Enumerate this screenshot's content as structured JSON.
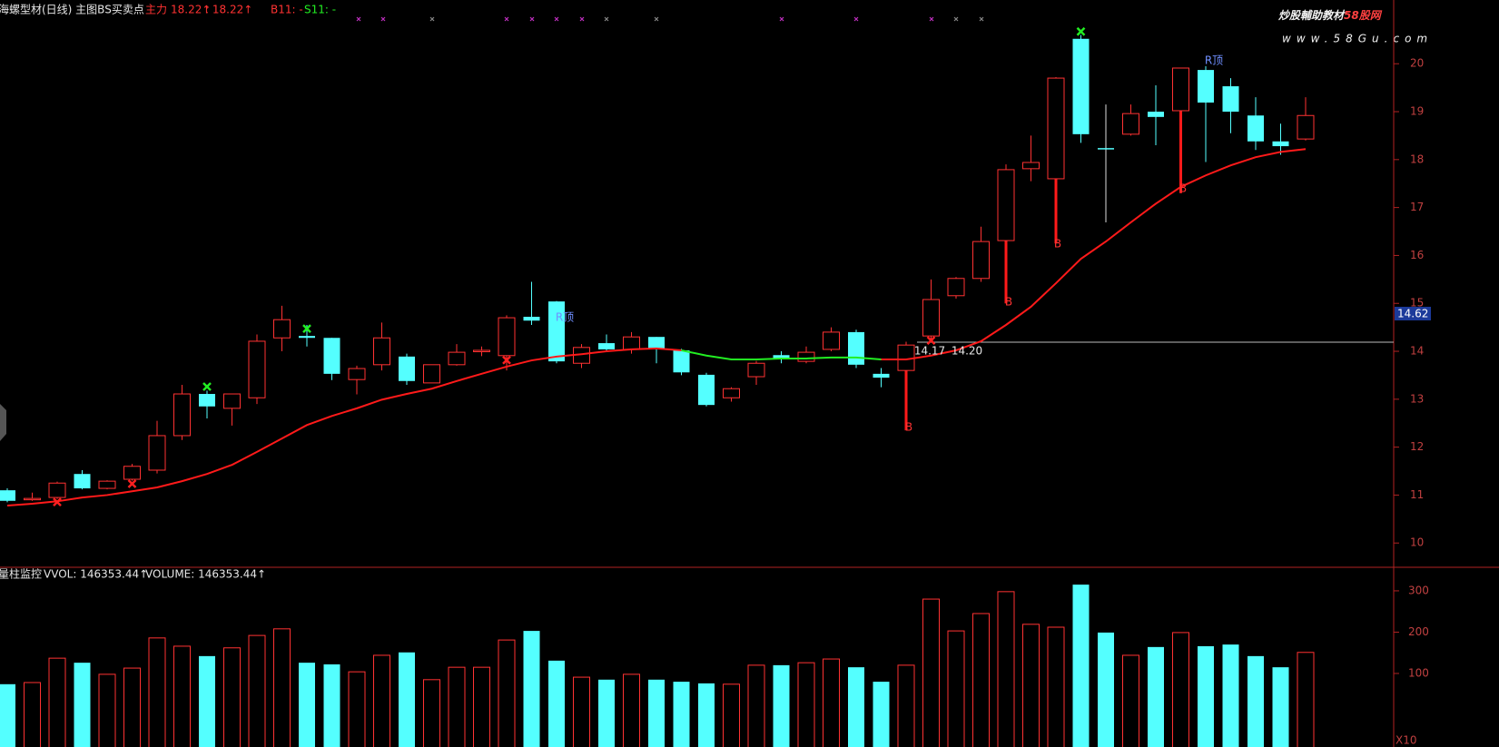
{
  "chart_data": [
    {
      "type": "candlestick",
      "title": "海螺型材(日线) 主图BS买卖点",
      "legend_texts": [
        "主力",
        "18.22↑",
        ": 18.22↑",
        "B11: -",
        "S11: -"
      ],
      "watermark": [
        "炒股輔助教材",
        "58股网",
        "www.58Gu.com"
      ],
      "annotations": [
        "R顶",
        "R顶",
        "B",
        "B",
        "B",
        "B",
        "14.17",
        "14.20"
      ],
      "price_marker": "14.62",
      "up_color": "#ff3232",
      "down_color": "#54ffff",
      "open": [
        11.1,
        10.91,
        10.95,
        11.44,
        11.14,
        11.33,
        11.52,
        12.24,
        13.11,
        12.81,
        13.03,
        14.28,
        14.32,
        14.28,
        13.41,
        13.72,
        13.89,
        13.34,
        13.72,
        14.0,
        13.91,
        14.72,
        15.04,
        13.75,
        14.17,
        14.04,
        14.3,
        14.02,
        13.51,
        13.03,
        13.47,
        13.92,
        13.79,
        14.04,
        14.4,
        13.53,
        13.6,
        14.32,
        15.16,
        15.52,
        16.31,
        17.81,
        17.6,
        20.52,
        18.24,
        18.53,
        19.0,
        19.02,
        19.87,
        19.53,
        18.92,
        18.38,
        18.43
      ],
      "high": [
        11.14,
        11.05,
        11.28,
        11.52,
        11.31,
        11.65,
        12.55,
        13.3,
        13.18,
        13.11,
        14.35,
        14.95,
        14.55,
        14.28,
        13.7,
        14.6,
        13.95,
        13.72,
        14.15,
        14.1,
        14.75,
        15.45,
        15.05,
        14.15,
        14.35,
        14.4,
        14.3,
        14.05,
        13.55,
        13.25,
        13.8,
        14.0,
        14.1,
        14.5,
        14.45,
        13.65,
        14.2,
        15.5,
        15.55,
        16.6,
        17.9,
        18.5,
        19.72,
        20.6,
        19.15,
        19.15,
        19.55,
        19.92,
        19.95,
        19.7,
        19.3,
        18.75,
        19.3
      ],
      "low": [
        10.85,
        10.88,
        10.92,
        11.12,
        11.12,
        11.3,
        11.45,
        12.15,
        12.6,
        12.45,
        12.9,
        14.0,
        14.1,
        13.4,
        13.1,
        13.6,
        13.3,
        13.34,
        13.7,
        13.9,
        13.6,
        14.55,
        13.75,
        13.65,
        14.0,
        13.95,
        13.75,
        13.5,
        12.85,
        12.95,
        13.3,
        13.75,
        13.75,
        14.0,
        13.65,
        13.25,
        12.35,
        14.25,
        15.1,
        15.45,
        15.0,
        17.55,
        16.25,
        18.35,
        16.69,
        18.5,
        18.3,
        17.3,
        17.95,
        18.55,
        18.2,
        18.1,
        18.4
      ],
      "close": [
        10.88,
        10.93,
        11.25,
        11.14,
        11.29,
        11.6,
        12.24,
        13.11,
        12.85,
        13.11,
        14.21,
        14.66,
        14.28,
        13.53,
        13.64,
        14.28,
        13.38,
        13.72,
        13.98,
        14.02,
        14.7,
        14.64,
        13.79,
        14.08,
        14.04,
        14.3,
        14.04,
        13.56,
        12.88,
        13.22,
        13.75,
        13.85,
        13.98,
        14.4,
        13.72,
        13.45,
        14.13,
        15.08,
        15.52,
        16.29,
        17.79,
        17.94,
        19.7,
        18.53,
        18.22,
        18.96,
        18.89,
        19.91,
        19.19,
        19.0,
        18.38,
        18.28,
        18.92
      ],
      "lines": [
        {
          "color": "#ff1a1a",
          "values": [
            10.78,
            10.82,
            10.87,
            10.95,
            11.0,
            11.08,
            11.16,
            11.29,
            11.44,
            11.63,
            11.9,
            12.18,
            12.46,
            12.65,
            12.81,
            12.99,
            13.11,
            13.22,
            13.38,
            13.53,
            13.68,
            13.81,
            13.89,
            13.94,
            14.0,
            14.04,
            14.06,
            14.02,
            null,
            null,
            null,
            null,
            null,
            null,
            null,
            13.83,
            13.83,
            13.91,
            14.02,
            14.21,
            14.55,
            14.93,
            15.42,
            15.93,
            16.29,
            16.69,
            17.08,
            17.43,
            17.67,
            17.88,
            18.05,
            18.16,
            18.22
          ]
        },
        {
          "color": "#22ee22",
          "values": [
            null,
            null,
            null,
            null,
            null,
            null,
            null,
            null,
            null,
            null,
            null,
            null,
            null,
            null,
            null,
            null,
            null,
            null,
            null,
            null,
            null,
            null,
            null,
            null,
            null,
            null,
            null,
            14.02,
            13.91,
            13.83,
            13.83,
            13.85,
            13.85,
            13.87,
            13.87,
            13.83,
            null,
            null,
            null,
            null,
            null,
            null,
            null,
            null,
            null,
            null,
            null,
            null,
            null,
            null,
            null,
            null,
            null
          ]
        }
      ],
      "ylim": [
        9.55,
        21.33
      ],
      "yticks": [
        10,
        11,
        12,
        13,
        14,
        15,
        16,
        17,
        18,
        19,
        20
      ]
    },
    {
      "type": "bar",
      "title": "量柱监控",
      "legend_texts": [
        "VVOL: 146353.44↑",
        "VOLUME: 146353.44↑"
      ],
      "unit_label": "X10",
      "values": [
        74,
        78,
        137,
        126,
        98,
        113,
        186,
        166,
        142,
        162,
        192,
        208,
        126,
        122,
        104,
        144,
        151,
        85,
        115,
        115,
        181,
        203,
        131,
        91,
        85,
        98,
        85,
        80,
        76,
        74,
        120,
        120,
        126,
        135,
        115,
        80,
        120,
        280,
        203,
        245,
        298,
        219,
        212,
        315,
        199,
        144,
        164,
        199,
        166,
        170,
        142,
        115,
        151
      ],
      "ylim": [
        -78,
        357
      ],
      "yticks": [
        100,
        200,
        300
      ]
    }
  ]
}
